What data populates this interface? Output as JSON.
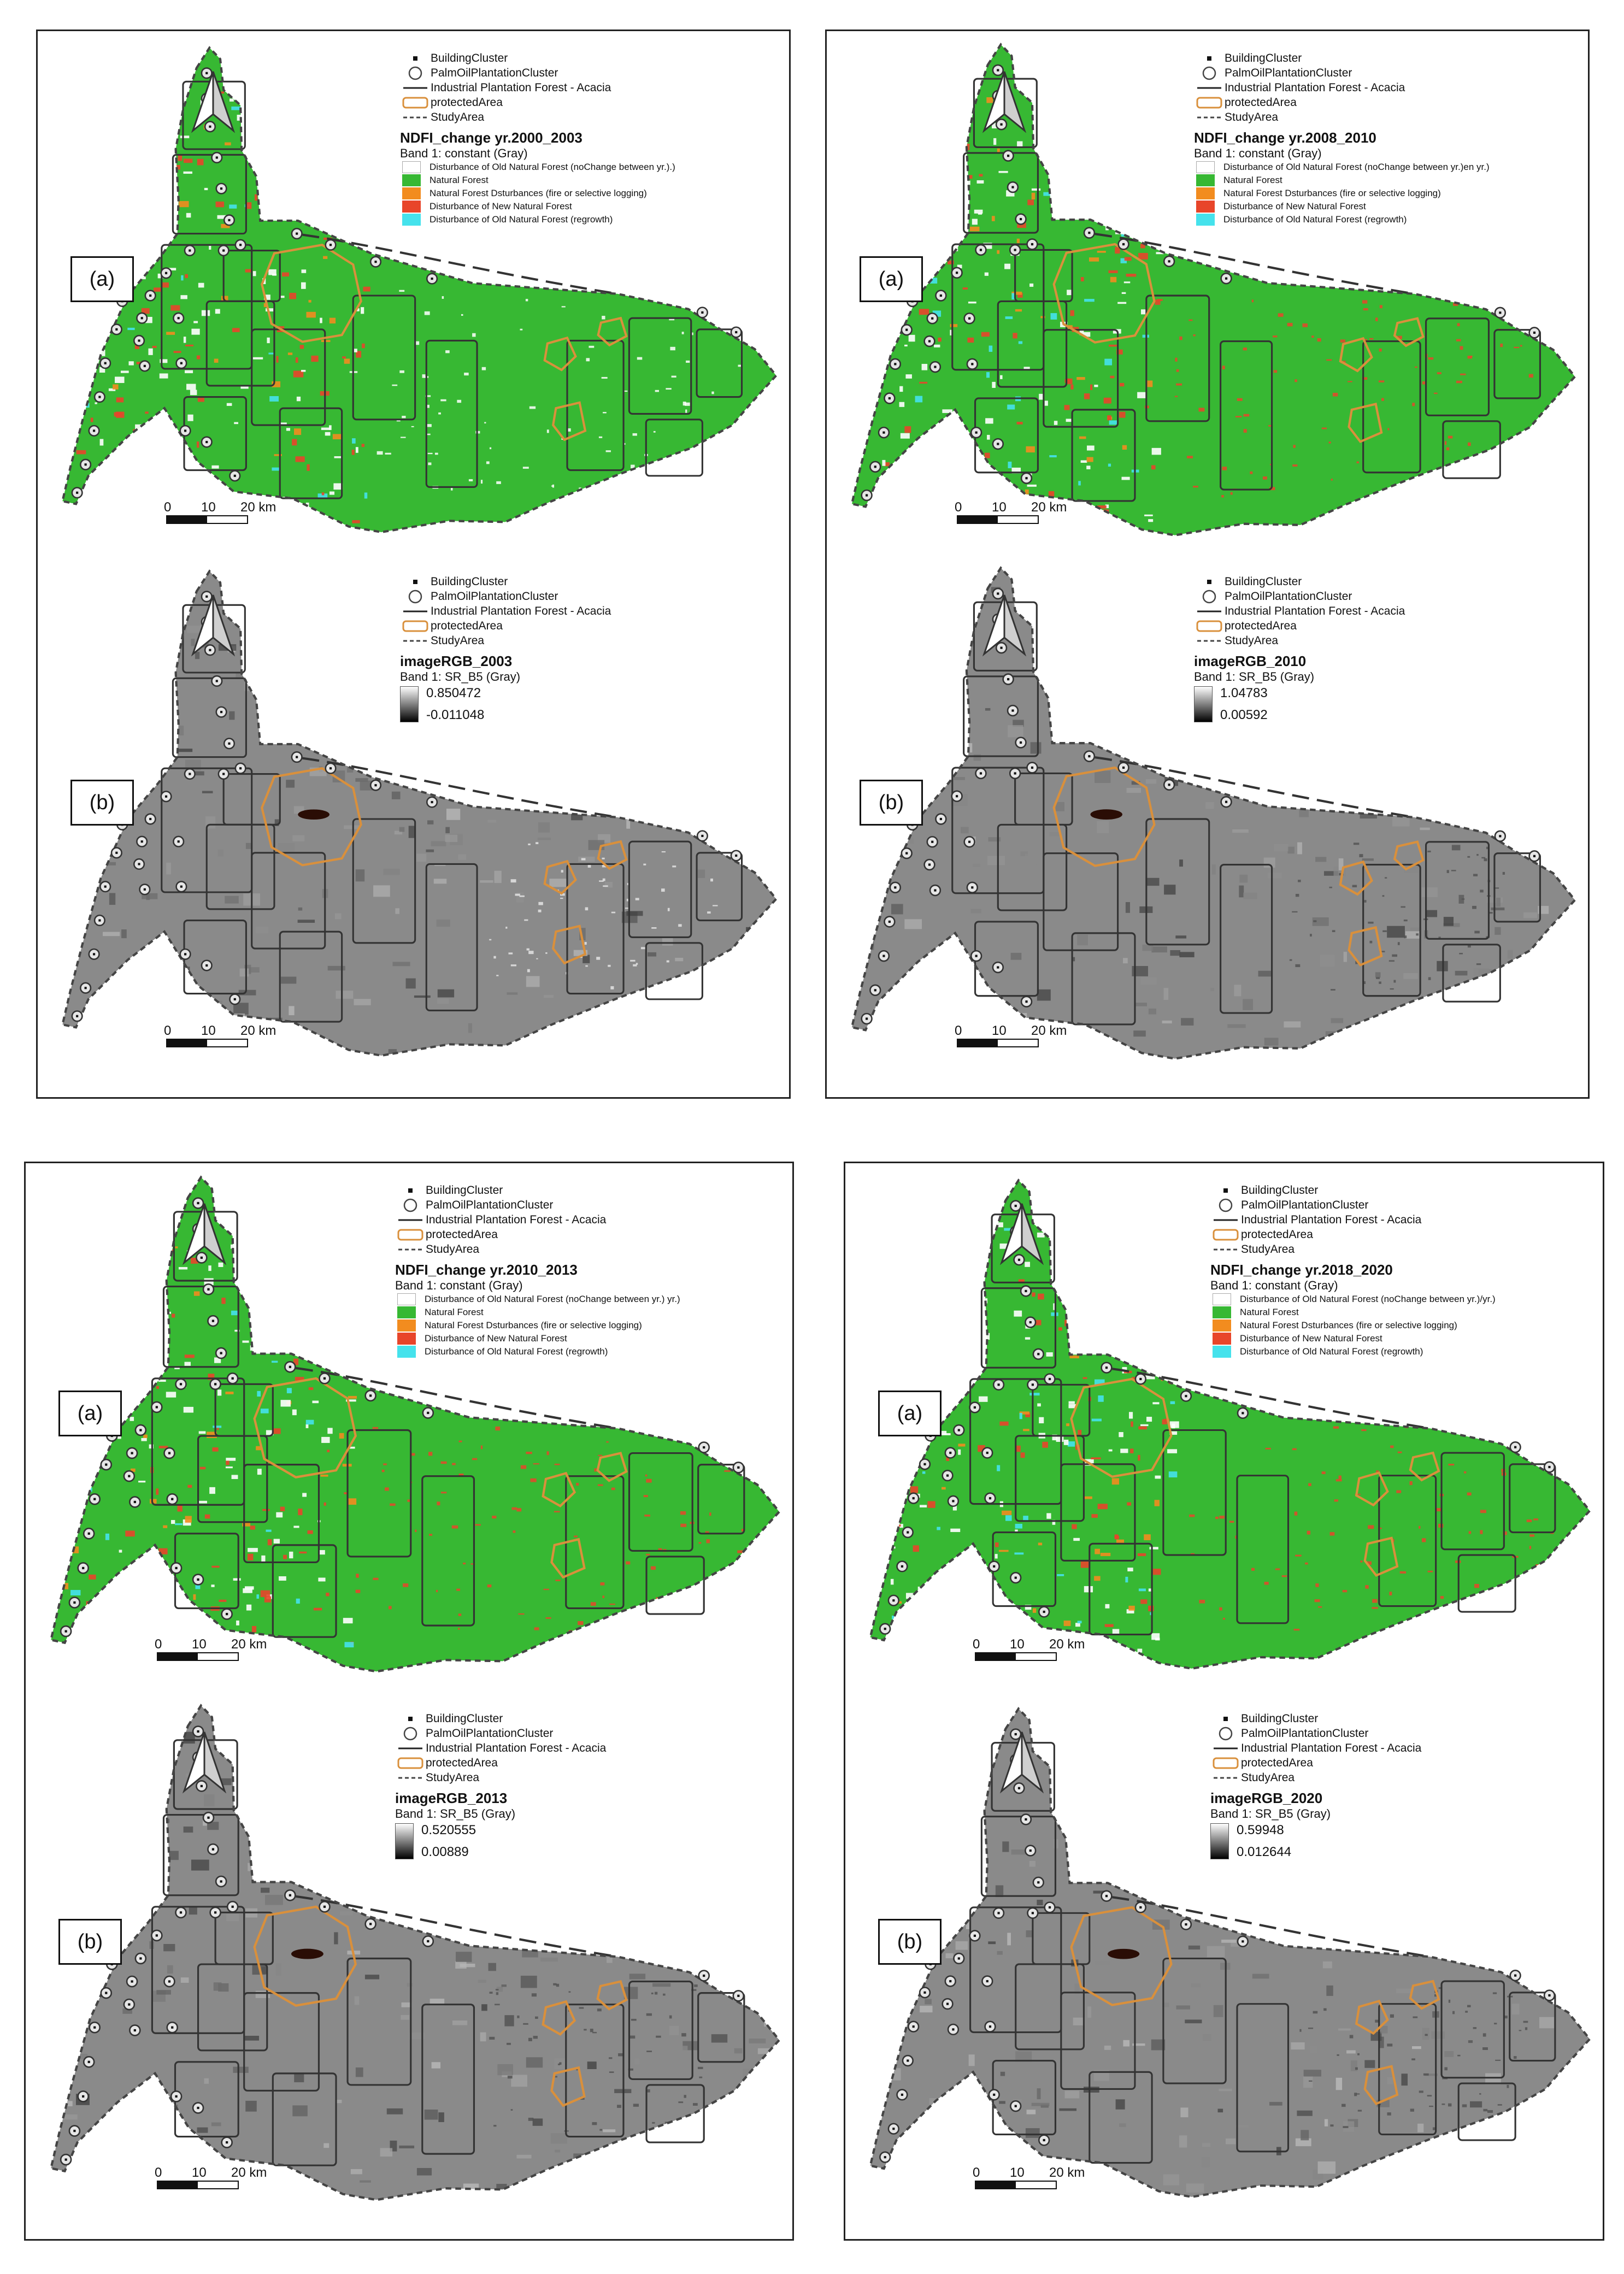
{
  "legend_static": {
    "building": "BuildingCluster",
    "palm": "PalmOilPlantationCluster",
    "ipf": "Industrial Plantation Forest - Acacia",
    "protected": "protectedArea",
    "study": "StudyArea"
  },
  "scale": {
    "l0": "0",
    "l1": "10",
    "l2": "20 km"
  },
  "colors": {
    "natural_forest": "#37b833",
    "disturbance_fire": "#f28c1f",
    "disturbance_new": "#e8452a",
    "regrowth": "#45e2ec",
    "protected_outline": "#d9903c",
    "gray_map": "#8a8a8a"
  },
  "quadrants": [
    {
      "a": {
        "tag": "(a)",
        "title": "NDFI_change yr.2000_2003",
        "band": "Band 1: constant (Gray)",
        "classes": [
          "Disturbance of Old Natural Forest (noChange between yr.).)",
          "Natural Forest",
          "Natural Forest Dsturbances (fire or selective logging)",
          "Disturbance of New Natural Forest",
          "Disturbance of Old Natural Forest (regrowth)"
        ]
      },
      "b": {
        "tag": "(b)",
        "title": "imageRGB_2003",
        "band": "Band 1: SR_B5 (Gray)",
        "max": "0.850472",
        "min": "-0.011048"
      }
    },
    {
      "a": {
        "tag": "(a)",
        "title": "NDFI_change yr.2008_2010",
        "band": "Band 1: constant (Gray)",
        "classes": [
          "Disturbance of Old Natural Forest (noChange between yr.)en yr.)",
          "Natural Forest",
          "Natural Forest Dsturbances (fire or selective logging)",
          "Disturbance of New Natural Forest",
          "Disturbance of Old Natural Forest (regrowth)"
        ]
      },
      "b": {
        "tag": "(b)",
        "title": "imageRGB_2010",
        "band": "Band 1: SR_B5 (Gray)",
        "max": "1.04783",
        "min": "0.00592"
      }
    },
    {
      "a": {
        "tag": "(a)",
        "title": "NDFI_change yr.2010_2013",
        "band": "Band 1: constant (Gray)",
        "classes": [
          "Disturbance of Old Natural Forest (noChange between yr.) yr.)",
          "Natural Forest",
          "Natural Forest Dsturbances (fire or selective logging)",
          "Disturbance of New Natural Forest",
          "Disturbance of Old Natural Forest (regrowth)"
        ]
      },
      "b": {
        "tag": "(b)",
        "title": "imageRGB_2013",
        "band": "Band 1: SR_B5 (Gray)",
        "max": "0.520555",
        "min": "0.00889"
      }
    },
    {
      "a": {
        "tag": "(a)",
        "title": "NDFI_change yr.2018_2020",
        "band": "Band 1: constant (Gray)",
        "classes": [
          "Disturbance of Old Natural Forest (noChange between yr.)/yr.)",
          "Natural Forest",
          "Natural Forest Dsturbances (fire or selective logging)",
          "Disturbance of New Natural Forest",
          "Disturbance of Old Natural Forest (regrowth)"
        ]
      },
      "b": {
        "tag": "(b)",
        "title": "imageRGB_2020",
        "band": "Band 1: SR_B5 (Gray)",
        "max": "0.59948",
        "min": "0.012644"
      }
    }
  ]
}
